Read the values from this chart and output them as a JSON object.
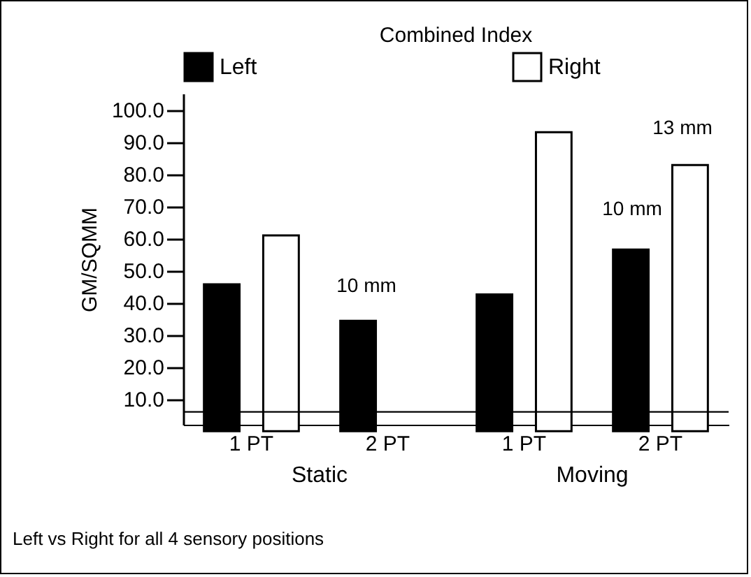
{
  "chart_data": {
    "type": "bar",
    "title": "Combined Index",
    "ylabel": "GM/SQMM",
    "categories": [
      "1 PT",
      "2 PT",
      "1 PT",
      "2 PT"
    ],
    "series": [
      {
        "name": "Left",
        "color": "#000000",
        "values": [
          45.7,
          34.3,
          42.5,
          56.5
        ]
      },
      {
        "name": "Right",
        "color": "#ffffff",
        "values": [
          60.9,
          null,
          93,
          82.8
        ]
      }
    ],
    "ylim": [
      2,
      105
    ],
    "yticks": [
      {
        "value": 10,
        "label": "10.0"
      },
      {
        "value": 20,
        "label": "20.0"
      },
      {
        "value": 30,
        "label": "30.0"
      },
      {
        "value": 40,
        "label": "40.0"
      },
      {
        "value": 50,
        "label": "50.0"
      },
      {
        "value": 60,
        "label": "60.0"
      },
      {
        "value": 70,
        "label": "70.0"
      },
      {
        "value": 80,
        "label": "80.0"
      },
      {
        "value": 90,
        "label": "90.0"
      },
      {
        "value": 100,
        "label": "100.0"
      }
    ],
    "ref_lines": [
      {
        "axis": "y",
        "value": 6,
        "color": "#000000"
      }
    ],
    "annotations": [
      "Static",
      "Moving",
      "Left vs Right for all 4 sensory positions",
      "10 mm",
      "10 mm",
      "13 mm"
    ],
    "legend": "top",
    "grid": false
  }
}
